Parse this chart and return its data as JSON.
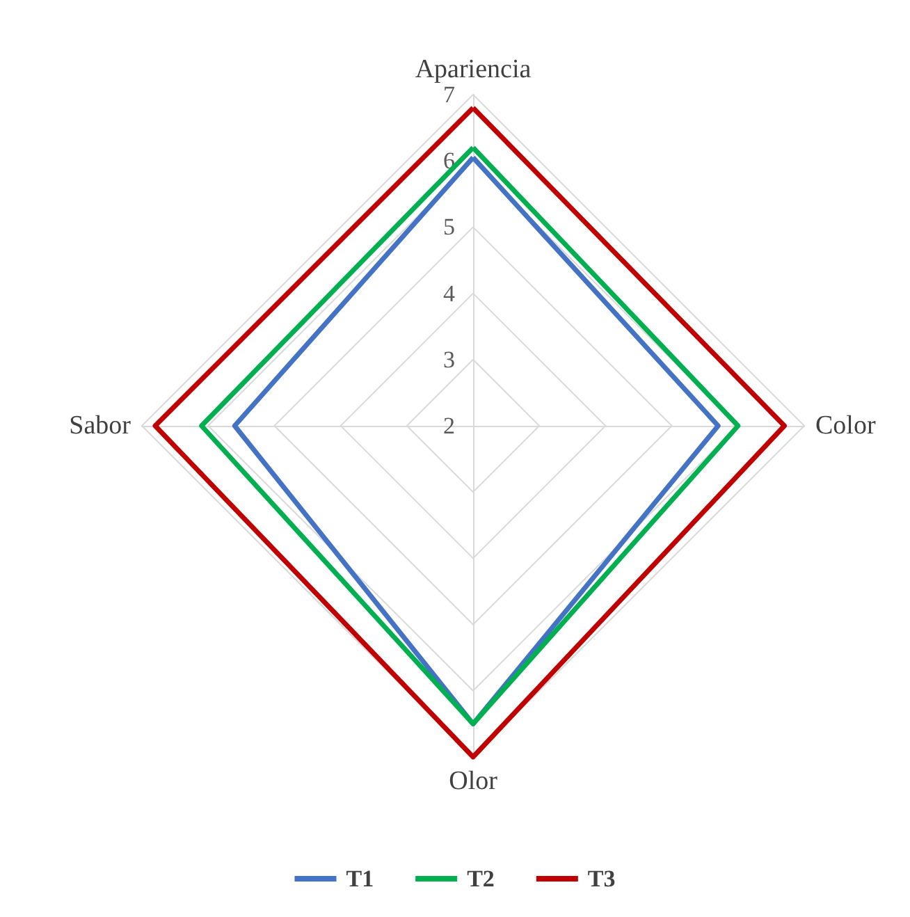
{
  "chart_data": {
    "type": "radar",
    "categories": [
      "Apariencia",
      "Color",
      "Olor",
      "Sabor"
    ],
    "series": [
      {
        "name": "T1",
        "color": "#4472c4",
        "values": [
          6.05,
          5.7,
          6.5,
          5.6
        ]
      },
      {
        "name": "T2",
        "color": "#00b050",
        "values": [
          6.2,
          6.0,
          6.5,
          6.1
        ]
      },
      {
        "name": "T3",
        "color": "#c00000",
        "values": [
          6.8,
          6.7,
          7.0,
          6.8
        ]
      }
    ],
    "ylim": [
      2,
      7
    ],
    "yticks": [
      2,
      3,
      4,
      5,
      6,
      7
    ],
    "grid": true,
    "legend": "bottom",
    "marker": "none"
  }
}
